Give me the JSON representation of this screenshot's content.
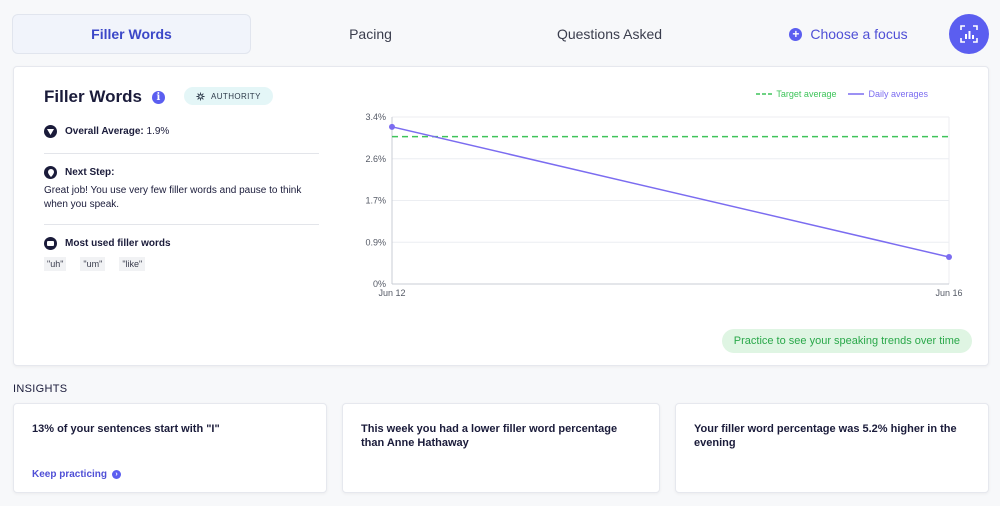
{
  "tabs": [
    {
      "label": "Filler Words"
    },
    {
      "label": "Pacing"
    },
    {
      "label": "Questions Asked"
    },
    {
      "label": "Choose a focus"
    }
  ],
  "panel": {
    "title": "Filler Words",
    "tag": "AUTHORITY",
    "overall_label": "Overall Average:",
    "overall_value": "1.9%",
    "next_step_label": "Next Step:",
    "next_step_text": "Great job! You use very few filler words and pause to think when you speak.",
    "most_used_label": "Most used filler words",
    "filler_words": [
      "\"uh\"",
      "\"um\"",
      "\"like\""
    ],
    "practice_text": "Practice to see your speaking trends over time"
  },
  "colors": {
    "accent": "#5b5ef0",
    "target_line": "#3ec45a",
    "daily_line": "#7b6cf0",
    "practice_bg": "#dff5e3"
  },
  "chart_data": {
    "type": "line",
    "x": [
      "Jun 12",
      "Jun 16"
    ],
    "yticks": [
      "0%",
      "0.9%",
      "1.7%",
      "2.6%",
      "3.4%"
    ],
    "ylim": [
      0,
      3.4
    ],
    "series": [
      {
        "name": "Target average",
        "values": [
          3.0,
          3.0
        ],
        "style": "dashed"
      },
      {
        "name": "Daily averages",
        "values": [
          3.2,
          0.55
        ],
        "style": "solid"
      }
    ],
    "legend": "top-right",
    "grid": true
  },
  "insights": {
    "label": "INSIGHTS",
    "cards": [
      {
        "text": "13% of your sentences start with \"I\"",
        "link": "Keep practicing"
      },
      {
        "text": "This week you had a lower filler word percentage than Anne Hathaway"
      },
      {
        "text": "Your filler word percentage was 5.2% higher in the evening"
      }
    ]
  }
}
